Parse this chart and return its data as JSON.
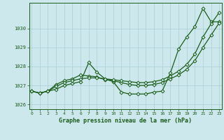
{
  "title": "Graphe pression niveau de la mer (hPa)",
  "background_color": "#cde8ec",
  "grid_color": "#a8cdd4",
  "line_color": "#1a5c1a",
  "xlim": [
    -0.3,
    23.3
  ],
  "ylim": [
    1025.75,
    1031.35
  ],
  "xticks": [
    0,
    1,
    2,
    3,
    4,
    5,
    6,
    7,
    8,
    9,
    10,
    11,
    12,
    13,
    14,
    15,
    16,
    17,
    18,
    19,
    20,
    21,
    22,
    23
  ],
  "ytick_vals": [
    1026,
    1027,
    1028,
    1029,
    1030
  ],
  "series1": [
    1026.7,
    1026.6,
    1026.7,
    1026.8,
    1027.0,
    1027.1,
    1027.2,
    1028.2,
    1027.7,
    1027.35,
    1027.2,
    1026.65,
    1026.55,
    1026.55,
    1026.55,
    1026.65,
    1026.7,
    1027.65,
    1028.9,
    1029.55,
    1030.1,
    1031.05,
    1030.35,
    1030.35
  ],
  "series2": [
    1026.7,
    1026.6,
    1026.7,
    1027.05,
    1027.25,
    1027.35,
    1027.55,
    1027.5,
    1027.45,
    1027.3,
    1027.25,
    1027.15,
    1027.05,
    1027.0,
    1027.0,
    1027.05,
    1027.15,
    1027.35,
    1027.55,
    1027.85,
    1028.3,
    1029.0,
    1029.65,
    1030.3
  ],
  "series3": [
    1026.7,
    1026.6,
    1026.7,
    1026.95,
    1027.15,
    1027.25,
    1027.35,
    1027.4,
    1027.4,
    1027.35,
    1027.3,
    1027.25,
    1027.2,
    1027.15,
    1027.15,
    1027.2,
    1027.3,
    1027.5,
    1027.75,
    1028.1,
    1028.65,
    1029.55,
    1030.25,
    1030.85
  ]
}
